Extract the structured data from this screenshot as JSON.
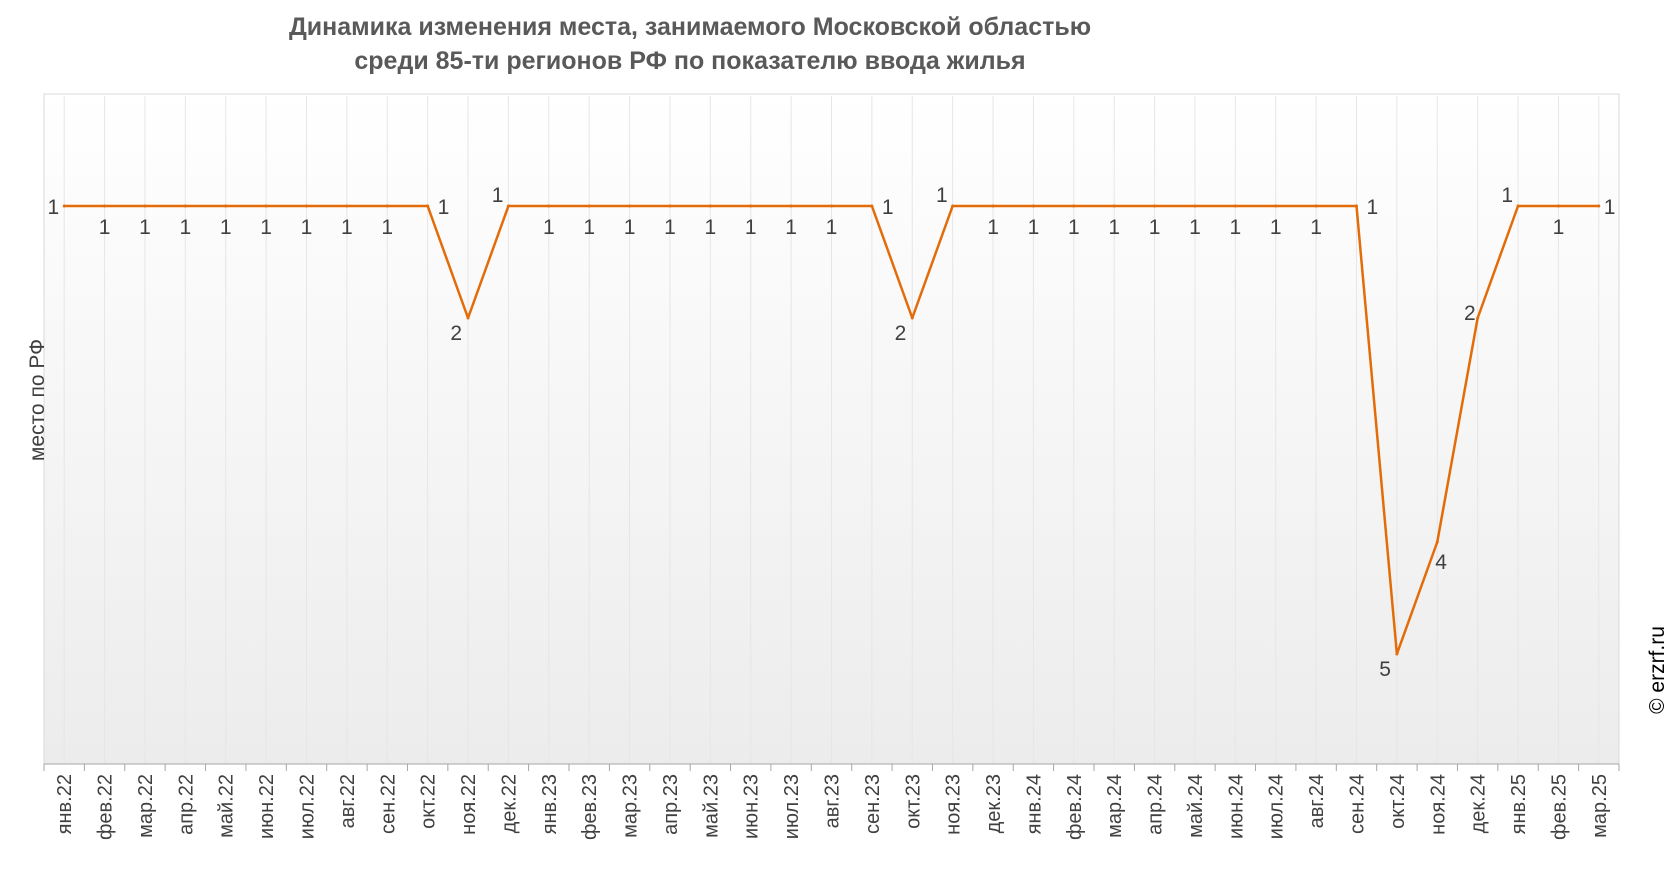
{
  "chart_data": {
    "type": "line",
    "title_line1": "Динамика изменения места, занимаемого Московской областью",
    "title_line2": "среди 85-ти регионов РФ по показателю ввода жилья",
    "ylabel": "место по РФ",
    "xlabel": "",
    "y_reversed": true,
    "ylim": [
      0,
      6
    ],
    "grid": "vertical",
    "legend": "none",
    "line_color": "#E36C09",
    "categories": [
      "янв.22",
      "фев.22",
      "мар.22",
      "апр.22",
      "май.22",
      "июн.22",
      "июл.22",
      "авг.22",
      "сен.22",
      "окт.22",
      "ноя.22",
      "дек.22",
      "янв.23",
      "фев.23",
      "мар.23",
      "апр.23",
      "май.23",
      "июн.23",
      "июл.23",
      "авг.23",
      "сен.23",
      "окт.23",
      "ноя.23",
      "дек.23",
      "янв.24",
      "фев.24",
      "мар.24",
      "апр.24",
      "май.24",
      "июн.24",
      "июл.24",
      "авг.24",
      "сен.24",
      "окт.24",
      "ноя.24",
      "дек.24",
      "янв.25",
      "фев.25",
      "мар.25"
    ],
    "series": [
      {
        "values": [
          1,
          1,
          1,
          1,
          1,
          1,
          1,
          1,
          1,
          1,
          2,
          1,
          1,
          1,
          1,
          1,
          1,
          1,
          1,
          1,
          1,
          2,
          1,
          1,
          1,
          1,
          1,
          1,
          1,
          1,
          1,
          1,
          1,
          5,
          4,
          2,
          1,
          1,
          1
        ]
      }
    ]
  },
  "watermark": "© erzrf.ru"
}
